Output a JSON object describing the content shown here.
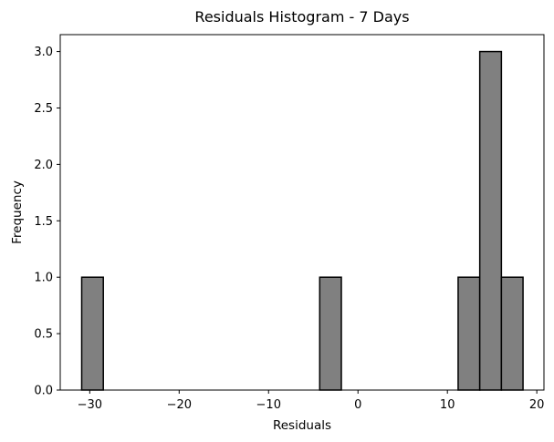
{
  "chart_data": {
    "type": "bar",
    "title": "Residuals Histogram - 7 Days",
    "xlabel": "Residuals",
    "ylabel": "Frequency",
    "xlim": [
      -33.3,
      20.8
    ],
    "ylim": [
      0,
      3.15
    ],
    "bin_width": 2.42,
    "bins": [
      {
        "start": -30.9,
        "end": -28.48,
        "count": 1
      },
      {
        "start": -4.28,
        "end": -1.86,
        "count": 1
      },
      {
        "start": 11.2,
        "end": 13.62,
        "count": 1
      },
      {
        "start": 13.62,
        "end": 16.04,
        "count": 3
      },
      {
        "start": 16.04,
        "end": 18.46,
        "count": 1
      }
    ],
    "x_ticks": [
      -30,
      -20,
      -10,
      0,
      10,
      20
    ],
    "x_tick_labels": [
      "−30",
      "−20",
      "−10",
      "0",
      "10",
      "20"
    ],
    "y_ticks": [
      0,
      0.5,
      1,
      1.5,
      2,
      2.5,
      3
    ],
    "y_tick_labels": [
      "0.0",
      "0.5",
      "1.0",
      "1.5",
      "2.0",
      "2.5",
      "3.0"
    ],
    "bar_color": "#808080",
    "edge_color": "#000000",
    "grid": false,
    "legend": "none"
  }
}
